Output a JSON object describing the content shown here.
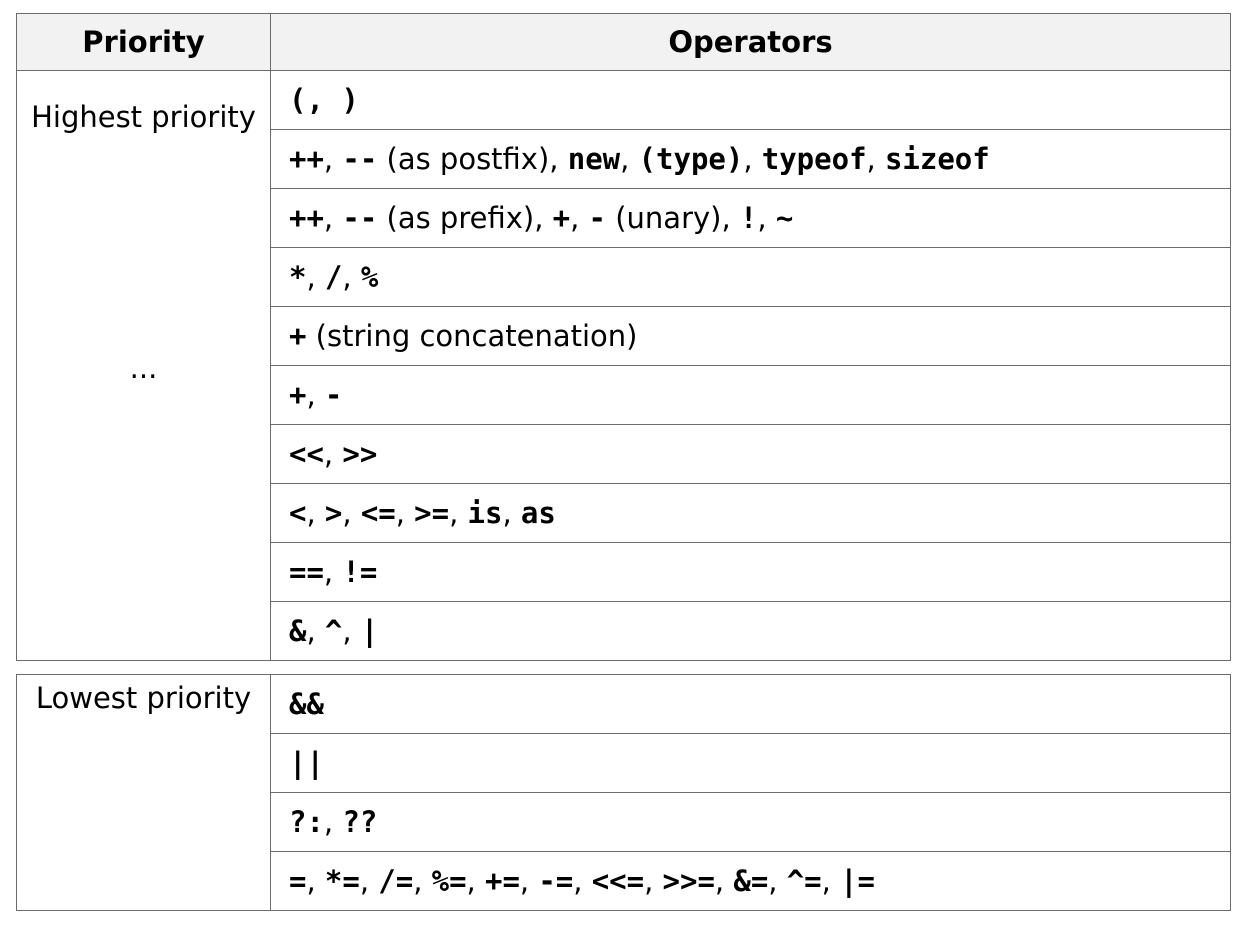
{
  "header": {
    "priority": "Priority",
    "operators": "Operators"
  },
  "priority_labels": {
    "highest": "Highest priority",
    "middle": "...",
    "lowest": "Lowest priority"
  },
  "rows_top": [
    [
      {
        "t": "op",
        "v": "(, )"
      }
    ],
    [
      {
        "t": "op",
        "v": "++"
      },
      {
        "t": "sep",
        "v": ", "
      },
      {
        "t": "op",
        "v": "--"
      },
      {
        "t": "sep",
        "v": " (as postfix), "
      },
      {
        "t": "op",
        "v": "new"
      },
      {
        "t": "sep",
        "v": ", "
      },
      {
        "t": "op",
        "v": "(type)"
      },
      {
        "t": "sep",
        "v": ", "
      },
      {
        "t": "op",
        "v": "typeof"
      },
      {
        "t": "sep",
        "v": ", "
      },
      {
        "t": "op",
        "v": "sizeof"
      }
    ],
    [
      {
        "t": "op",
        "v": "++"
      },
      {
        "t": "sep",
        "v": ", "
      },
      {
        "t": "op",
        "v": "--"
      },
      {
        "t": "sep",
        "v": " (as prefix), "
      },
      {
        "t": "op",
        "v": "+"
      },
      {
        "t": "sep",
        "v": ", "
      },
      {
        "t": "op",
        "v": "-"
      },
      {
        "t": "sep",
        "v": " (unary), "
      },
      {
        "t": "op",
        "v": "!"
      },
      {
        "t": "sep",
        "v": ", "
      },
      {
        "t": "op",
        "v": "~"
      }
    ],
    [
      {
        "t": "op",
        "v": "*"
      },
      {
        "t": "sep",
        "v": ", "
      },
      {
        "t": "op",
        "v": "/"
      },
      {
        "t": "sep",
        "v": ", "
      },
      {
        "t": "op",
        "v": "%"
      }
    ],
    [
      {
        "t": "op",
        "v": "+"
      },
      {
        "t": "sep",
        "v": " (string concatenation)"
      }
    ],
    [
      {
        "t": "op",
        "v": "+"
      },
      {
        "t": "sep",
        "v": ", "
      },
      {
        "t": "op",
        "v": "-"
      }
    ],
    [
      {
        "t": "op",
        "v": "<<"
      },
      {
        "t": "sep",
        "v": ", "
      },
      {
        "t": "op",
        "v": ">>"
      }
    ],
    [
      {
        "t": "op",
        "v": "<"
      },
      {
        "t": "sep",
        "v": ", "
      },
      {
        "t": "op",
        "v": ">"
      },
      {
        "t": "sep",
        "v": ", "
      },
      {
        "t": "op",
        "v": "<="
      },
      {
        "t": "sep",
        "v": ", "
      },
      {
        "t": "op",
        "v": ">="
      },
      {
        "t": "sep",
        "v": ", "
      },
      {
        "t": "op",
        "v": "is"
      },
      {
        "t": "sep",
        "v": ", "
      },
      {
        "t": "op",
        "v": "as"
      }
    ],
    [
      {
        "t": "op",
        "v": "=="
      },
      {
        "t": "sep",
        "v": ", "
      },
      {
        "t": "op",
        "v": "!="
      }
    ],
    [
      {
        "t": "op",
        "v": "&"
      },
      {
        "t": "sep",
        "v": ", "
      },
      {
        "t": "op",
        "v": "^"
      },
      {
        "t": "sep",
        "v": ", "
      },
      {
        "t": "op",
        "v": "|"
      }
    ]
  ],
  "rows_bottom": [
    [
      {
        "t": "op",
        "v": "&&"
      }
    ],
    [
      {
        "t": "op",
        "v": "||"
      }
    ],
    [
      {
        "t": "op",
        "v": "?:"
      },
      {
        "t": "sep",
        "v": ", "
      },
      {
        "t": "op",
        "v": "??"
      }
    ],
    [
      {
        "t": "op",
        "v": "="
      },
      {
        "t": "sep",
        "v": ", "
      },
      {
        "t": "op",
        "v": "*="
      },
      {
        "t": "sep",
        "v": ", "
      },
      {
        "t": "op",
        "v": "/="
      },
      {
        "t": "sep",
        "v": ", "
      },
      {
        "t": "op",
        "v": "%="
      },
      {
        "t": "sep",
        "v": ", "
      },
      {
        "t": "op",
        "v": "+="
      },
      {
        "t": "sep",
        "v": ", "
      },
      {
        "t": "op",
        "v": "-="
      },
      {
        "t": "sep",
        "v": ", "
      },
      {
        "t": "op",
        "v": "<<="
      },
      {
        "t": "sep",
        "v": ", "
      },
      {
        "t": "op",
        "v": ">>="
      },
      {
        "t": "sep",
        "v": ", "
      },
      {
        "t": "op",
        "v": "&="
      },
      {
        "t": "sep",
        "v": ", "
      },
      {
        "t": "op",
        "v": "^="
      },
      {
        "t": "sep",
        "v": ", "
      },
      {
        "t": "op",
        "v": "|="
      }
    ]
  ]
}
